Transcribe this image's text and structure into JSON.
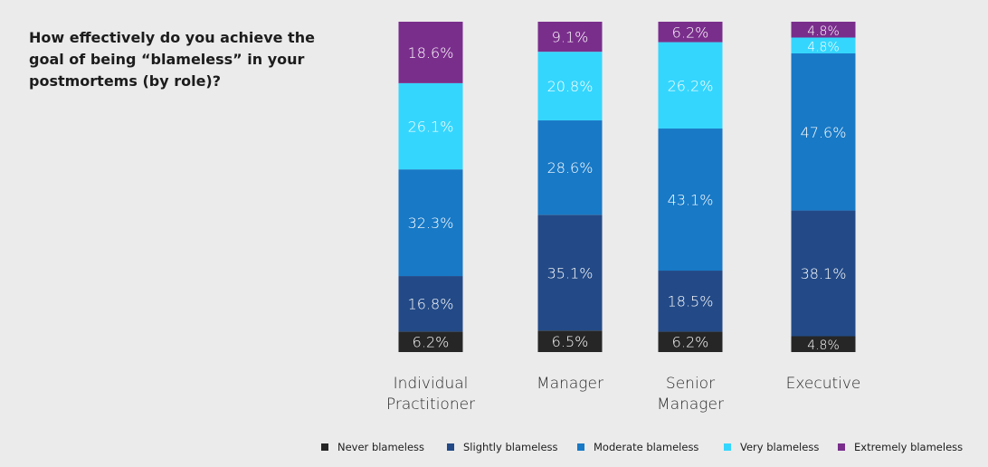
{
  "chart_data": {
    "type": "bar",
    "stacked": true,
    "orientation": "vertical",
    "title": "How effectively do you achieve the goal of being “blameless” in your postmortems (by role)?",
    "unit": "%",
    "categories": [
      [
        "Individual",
        "Practitioner"
      ],
      [
        "Manager"
      ],
      [
        "Senior",
        "Manager"
      ],
      [
        "Executive"
      ]
    ],
    "series": [
      {
        "name": "Never blameless",
        "color": "#262626",
        "values": [
          6.2,
          6.5,
          6.2,
          4.8
        ],
        "labels": [
          "6.2%",
          "6.5%",
          "6.2%",
          "4.8%"
        ]
      },
      {
        "name": "Slightly blameless",
        "color": "#234a87",
        "values": [
          16.8,
          35.1,
          18.5,
          38.1
        ],
        "labels": [
          "16.8%",
          "35.1%",
          "18.5%",
          "38.1%"
        ]
      },
      {
        "name": "Moderate blameless",
        "color": "#1879c6",
        "values": [
          32.3,
          28.6,
          43.1,
          47.6
        ],
        "labels": [
          "32.3%",
          "28.6%",
          "43.1%",
          "47.6%"
        ]
      },
      {
        "name": "Very blameless",
        "color": "#35d6fd",
        "values": [
          26.1,
          20.8,
          26.2,
          4.8
        ],
        "labels": [
          "26.1%",
          "20.8%",
          "26.2%",
          "4.8%"
        ]
      },
      {
        "name": "Extremely blameless",
        "color": "#7a2e8c",
        "values": [
          18.6,
          9.1,
          6.2,
          4.8
        ],
        "labels": [
          "18.6%",
          "9.1%",
          "6.2%",
          "4.8%"
        ]
      }
    ],
    "legend_position": "bottom",
    "grid": false
  }
}
